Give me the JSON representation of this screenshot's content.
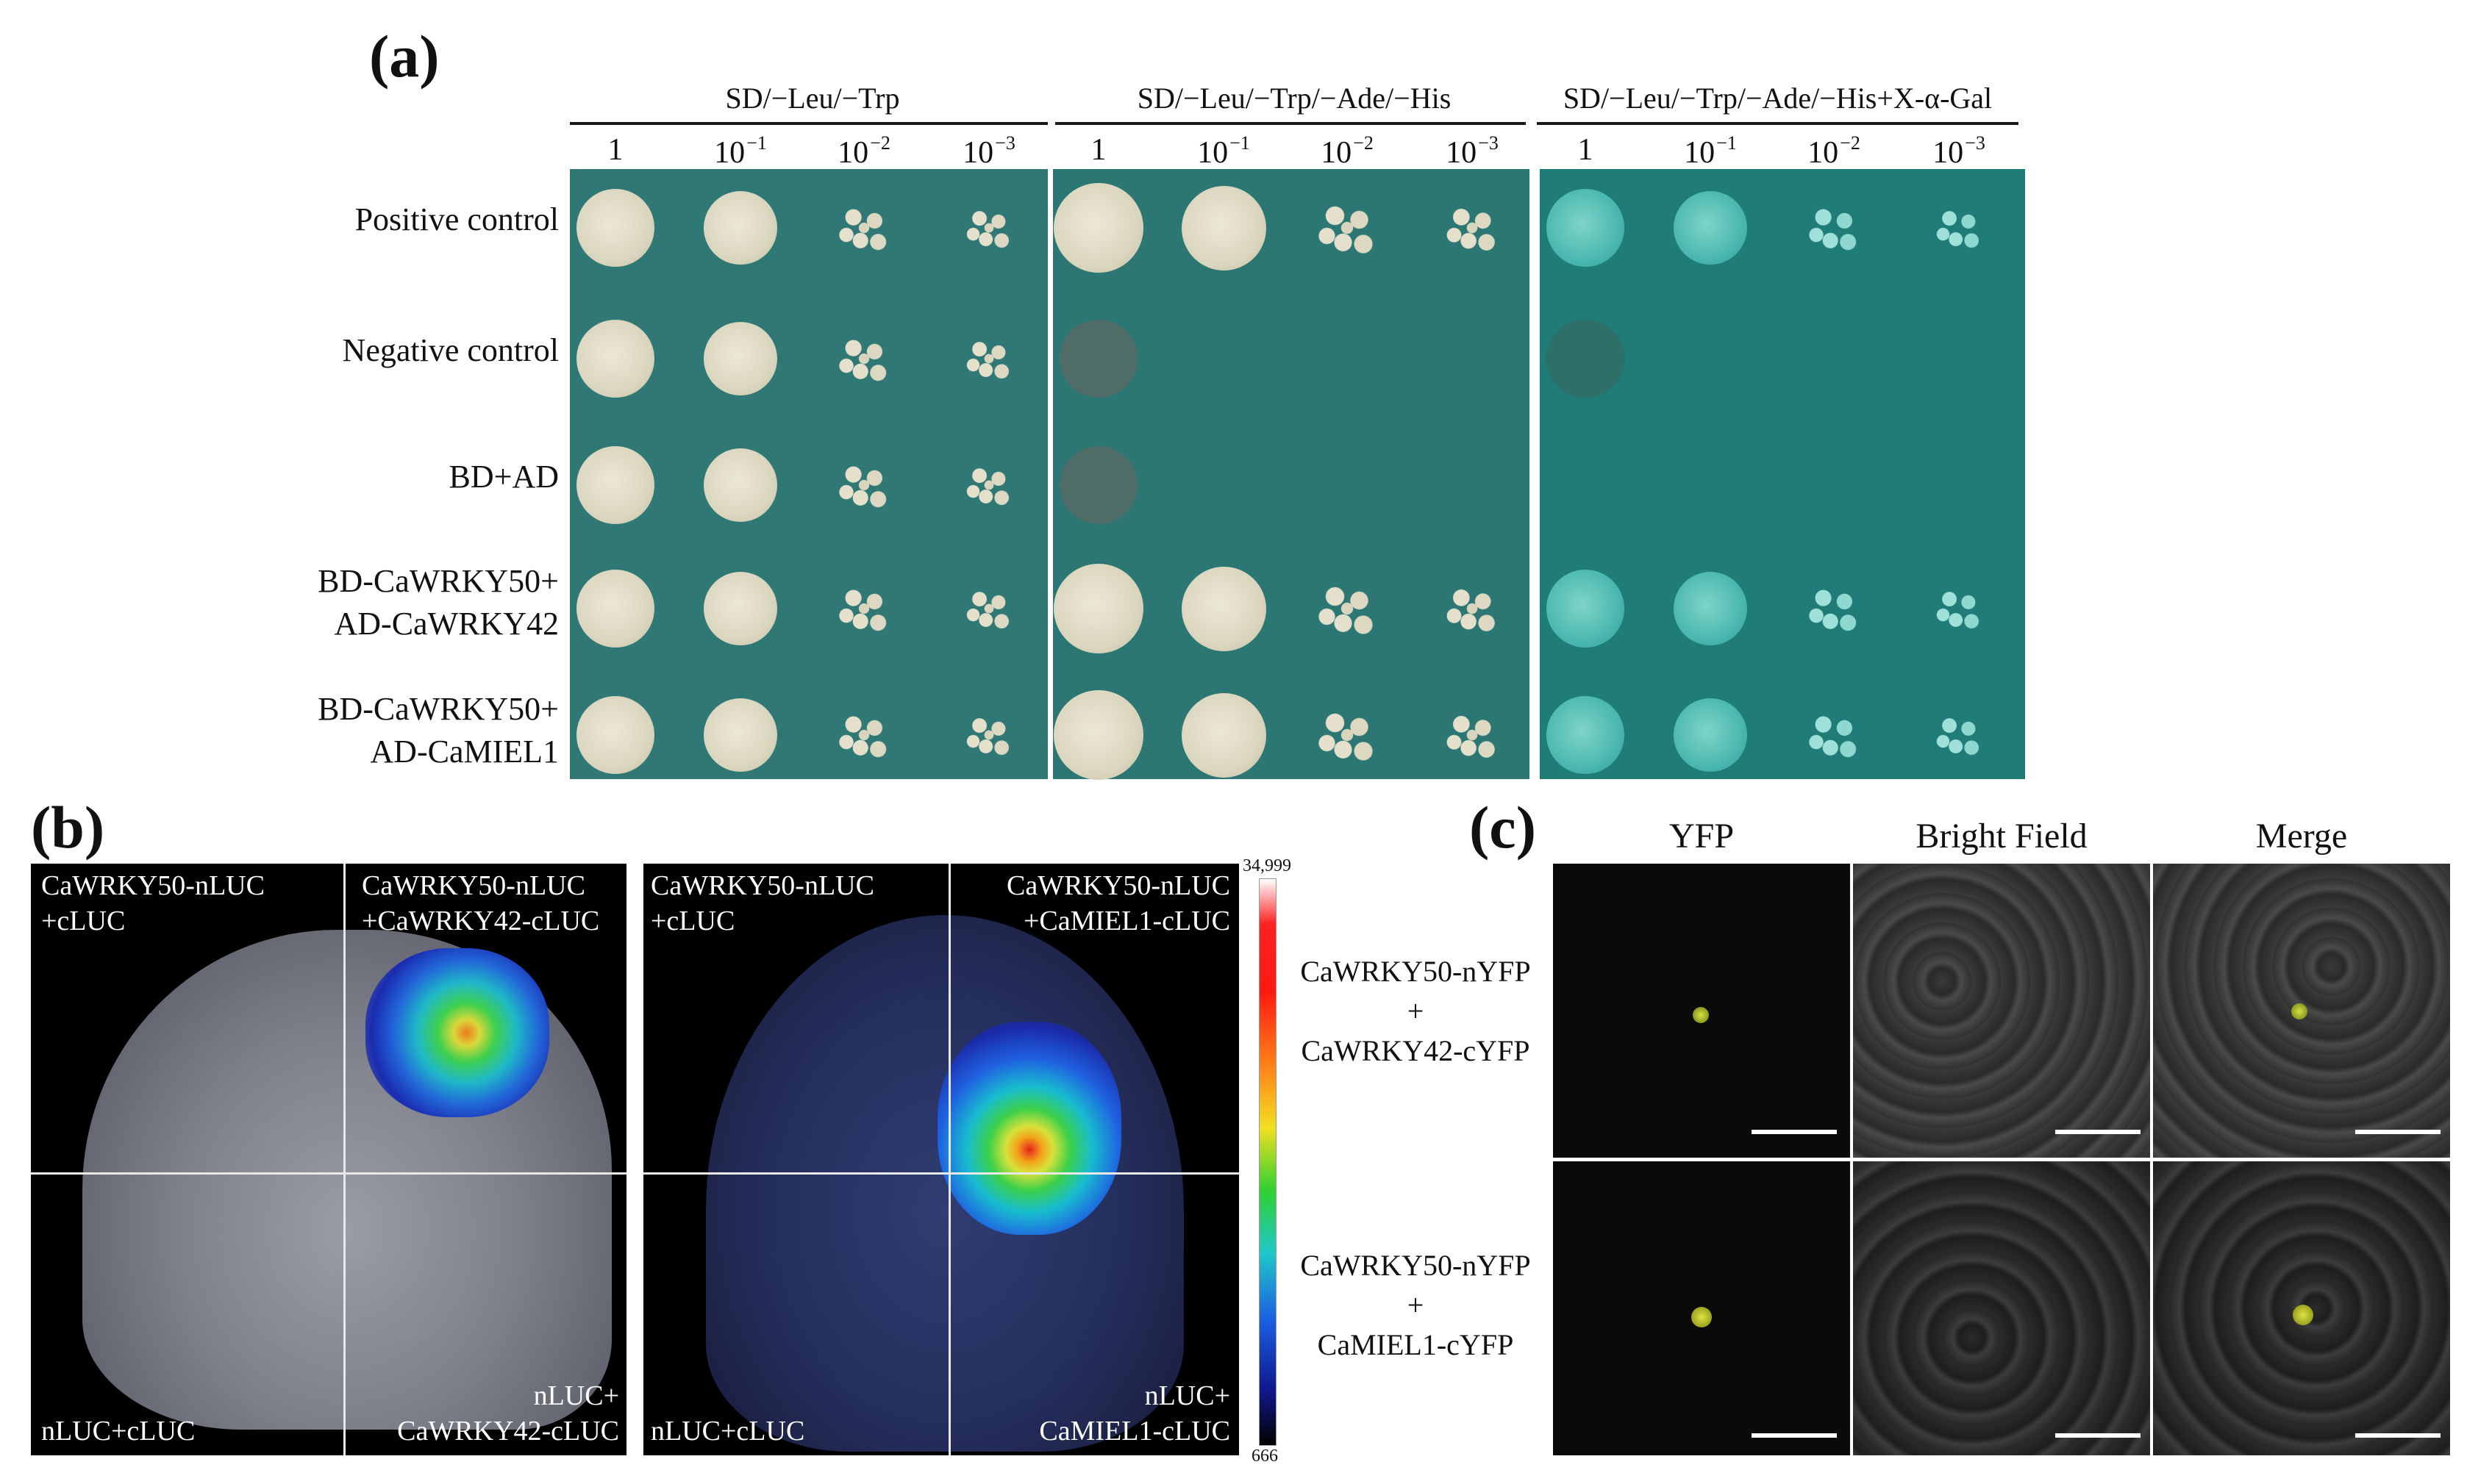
{
  "panel_a": {
    "letter": "(a)",
    "media": [
      "SD/−Leu/−Trp",
      "SD/−Leu/−Trp/−Ade/−His",
      "SD/−Leu/−Trp/−Ade/−His+X-α-Gal"
    ],
    "dilution_base": "1",
    "dilution_ten": "10",
    "dilution_exponents": [
      "−1",
      "−2",
      "−3"
    ],
    "rows": [
      {
        "line1": "Positive control",
        "line2": ""
      },
      {
        "line1": "Negative control",
        "line2": ""
      },
      {
        "line1": "BD+AD",
        "line2": ""
      },
      {
        "line1": "BD-CaWRKY50+",
        "line2": "AD-CaWRKY42"
      },
      {
        "line1": "BD-CaWRKY50+",
        "line2": "AD-CaMIEL1"
      }
    ],
    "colors": {
      "plate_blue": "#2e7a77",
      "plate_green": "#1f7c78",
      "colony": "#ddd9c4",
      "colony_blue": "#4cb9b0"
    }
  },
  "panel_b": {
    "letter": "(b)",
    "image1": {
      "tl": [
        "CaWRKY50-nLUC",
        "+cLUC"
      ],
      "tr": [
        "CaWRKY50-nLUC",
        "+CaWRKY42-cLUC"
      ],
      "bl": [
        "nLUC+cLUC"
      ],
      "br": [
        "nLUC+",
        "CaWRKY42-cLUC"
      ]
    },
    "image2": {
      "tl": [
        "CaWRKY50-nLUC",
        "+cLUC"
      ],
      "tr": [
        "CaWRKY50-nLUC",
        "+CaMIEL1-cLUC"
      ],
      "bl": [
        "nLUC+cLUC"
      ],
      "br": [
        "nLUC+",
        "CaMIEL1-cLUC"
      ]
    },
    "colorbar_max": "34,999",
    "colorbar_min": "666"
  },
  "panel_c": {
    "letter": "(c)",
    "columns": [
      "YFP",
      "Bright Field",
      "Merge"
    ],
    "rows": [
      [
        "CaWRKY50-nYFP",
        "+",
        "CaWRKY42-cYFP"
      ],
      [
        "CaWRKY50-nYFP",
        "+",
        "CaMIEL1-cYFP"
      ]
    ]
  }
}
